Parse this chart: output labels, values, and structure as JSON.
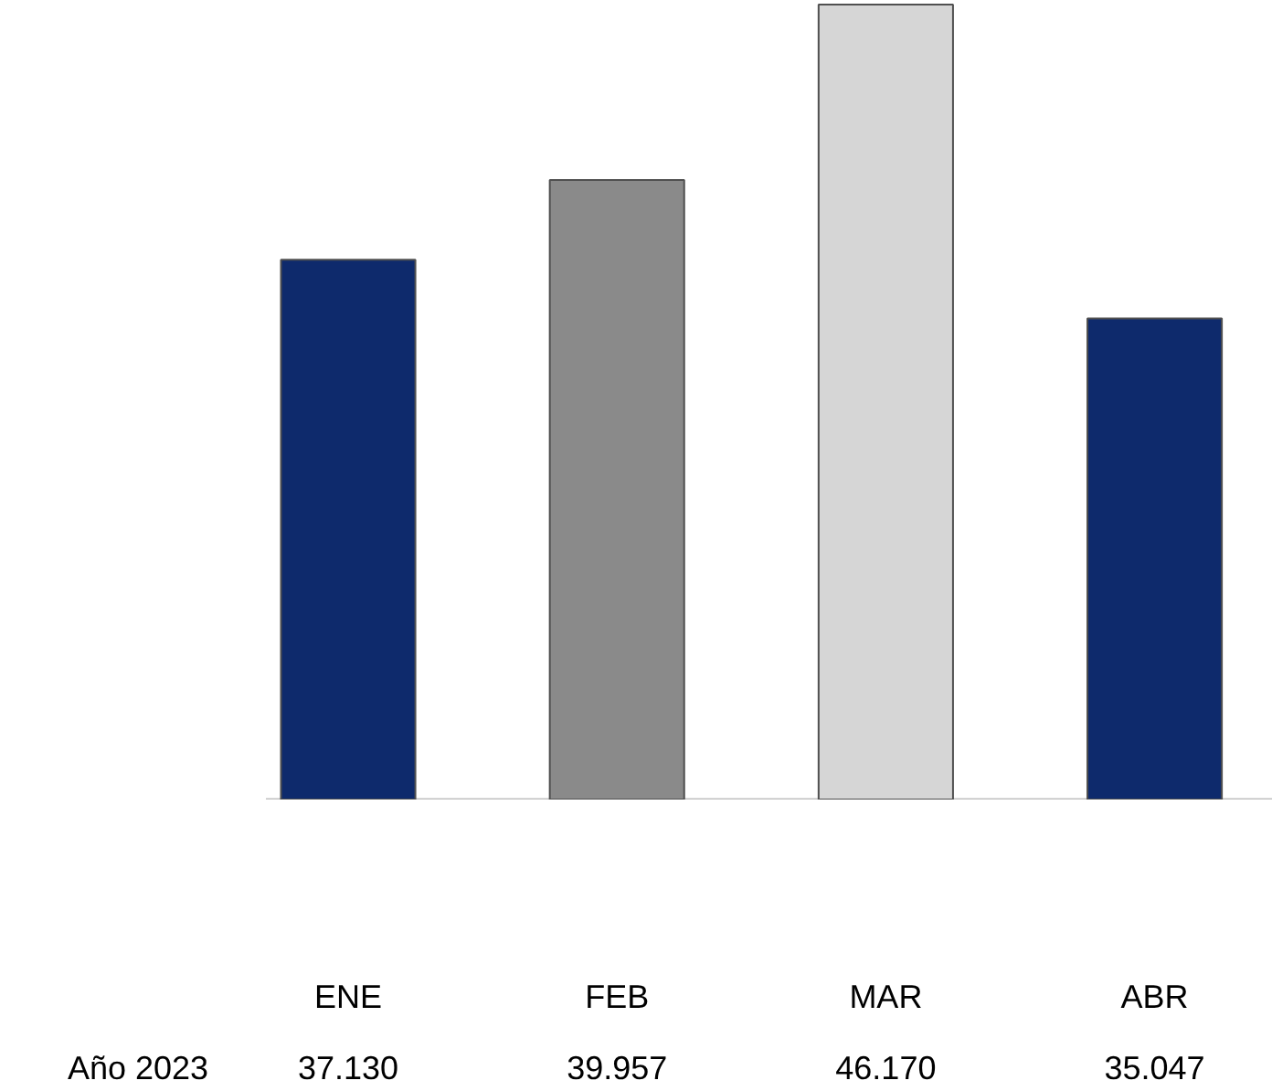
{
  "chart_data": {
    "type": "bar",
    "categories": [
      "ENE",
      "FEB",
      "MAR",
      "ABR"
    ],
    "series": [
      {
        "name": "Año 2023",
        "colors": [
          "#0e2a6c",
          "#8a8a8a",
          "#d6d6d6",
          "#0e2a6c"
        ],
        "values": [
          37130,
          39957,
          46170,
          35047
        ],
        "value_labels": [
          "37.130",
          "39.957",
          "46.170",
          "35.047"
        ]
      }
    ],
    "ylim": [
      18000,
      46300
    ],
    "tick_labels": "x",
    "grid": false
  }
}
